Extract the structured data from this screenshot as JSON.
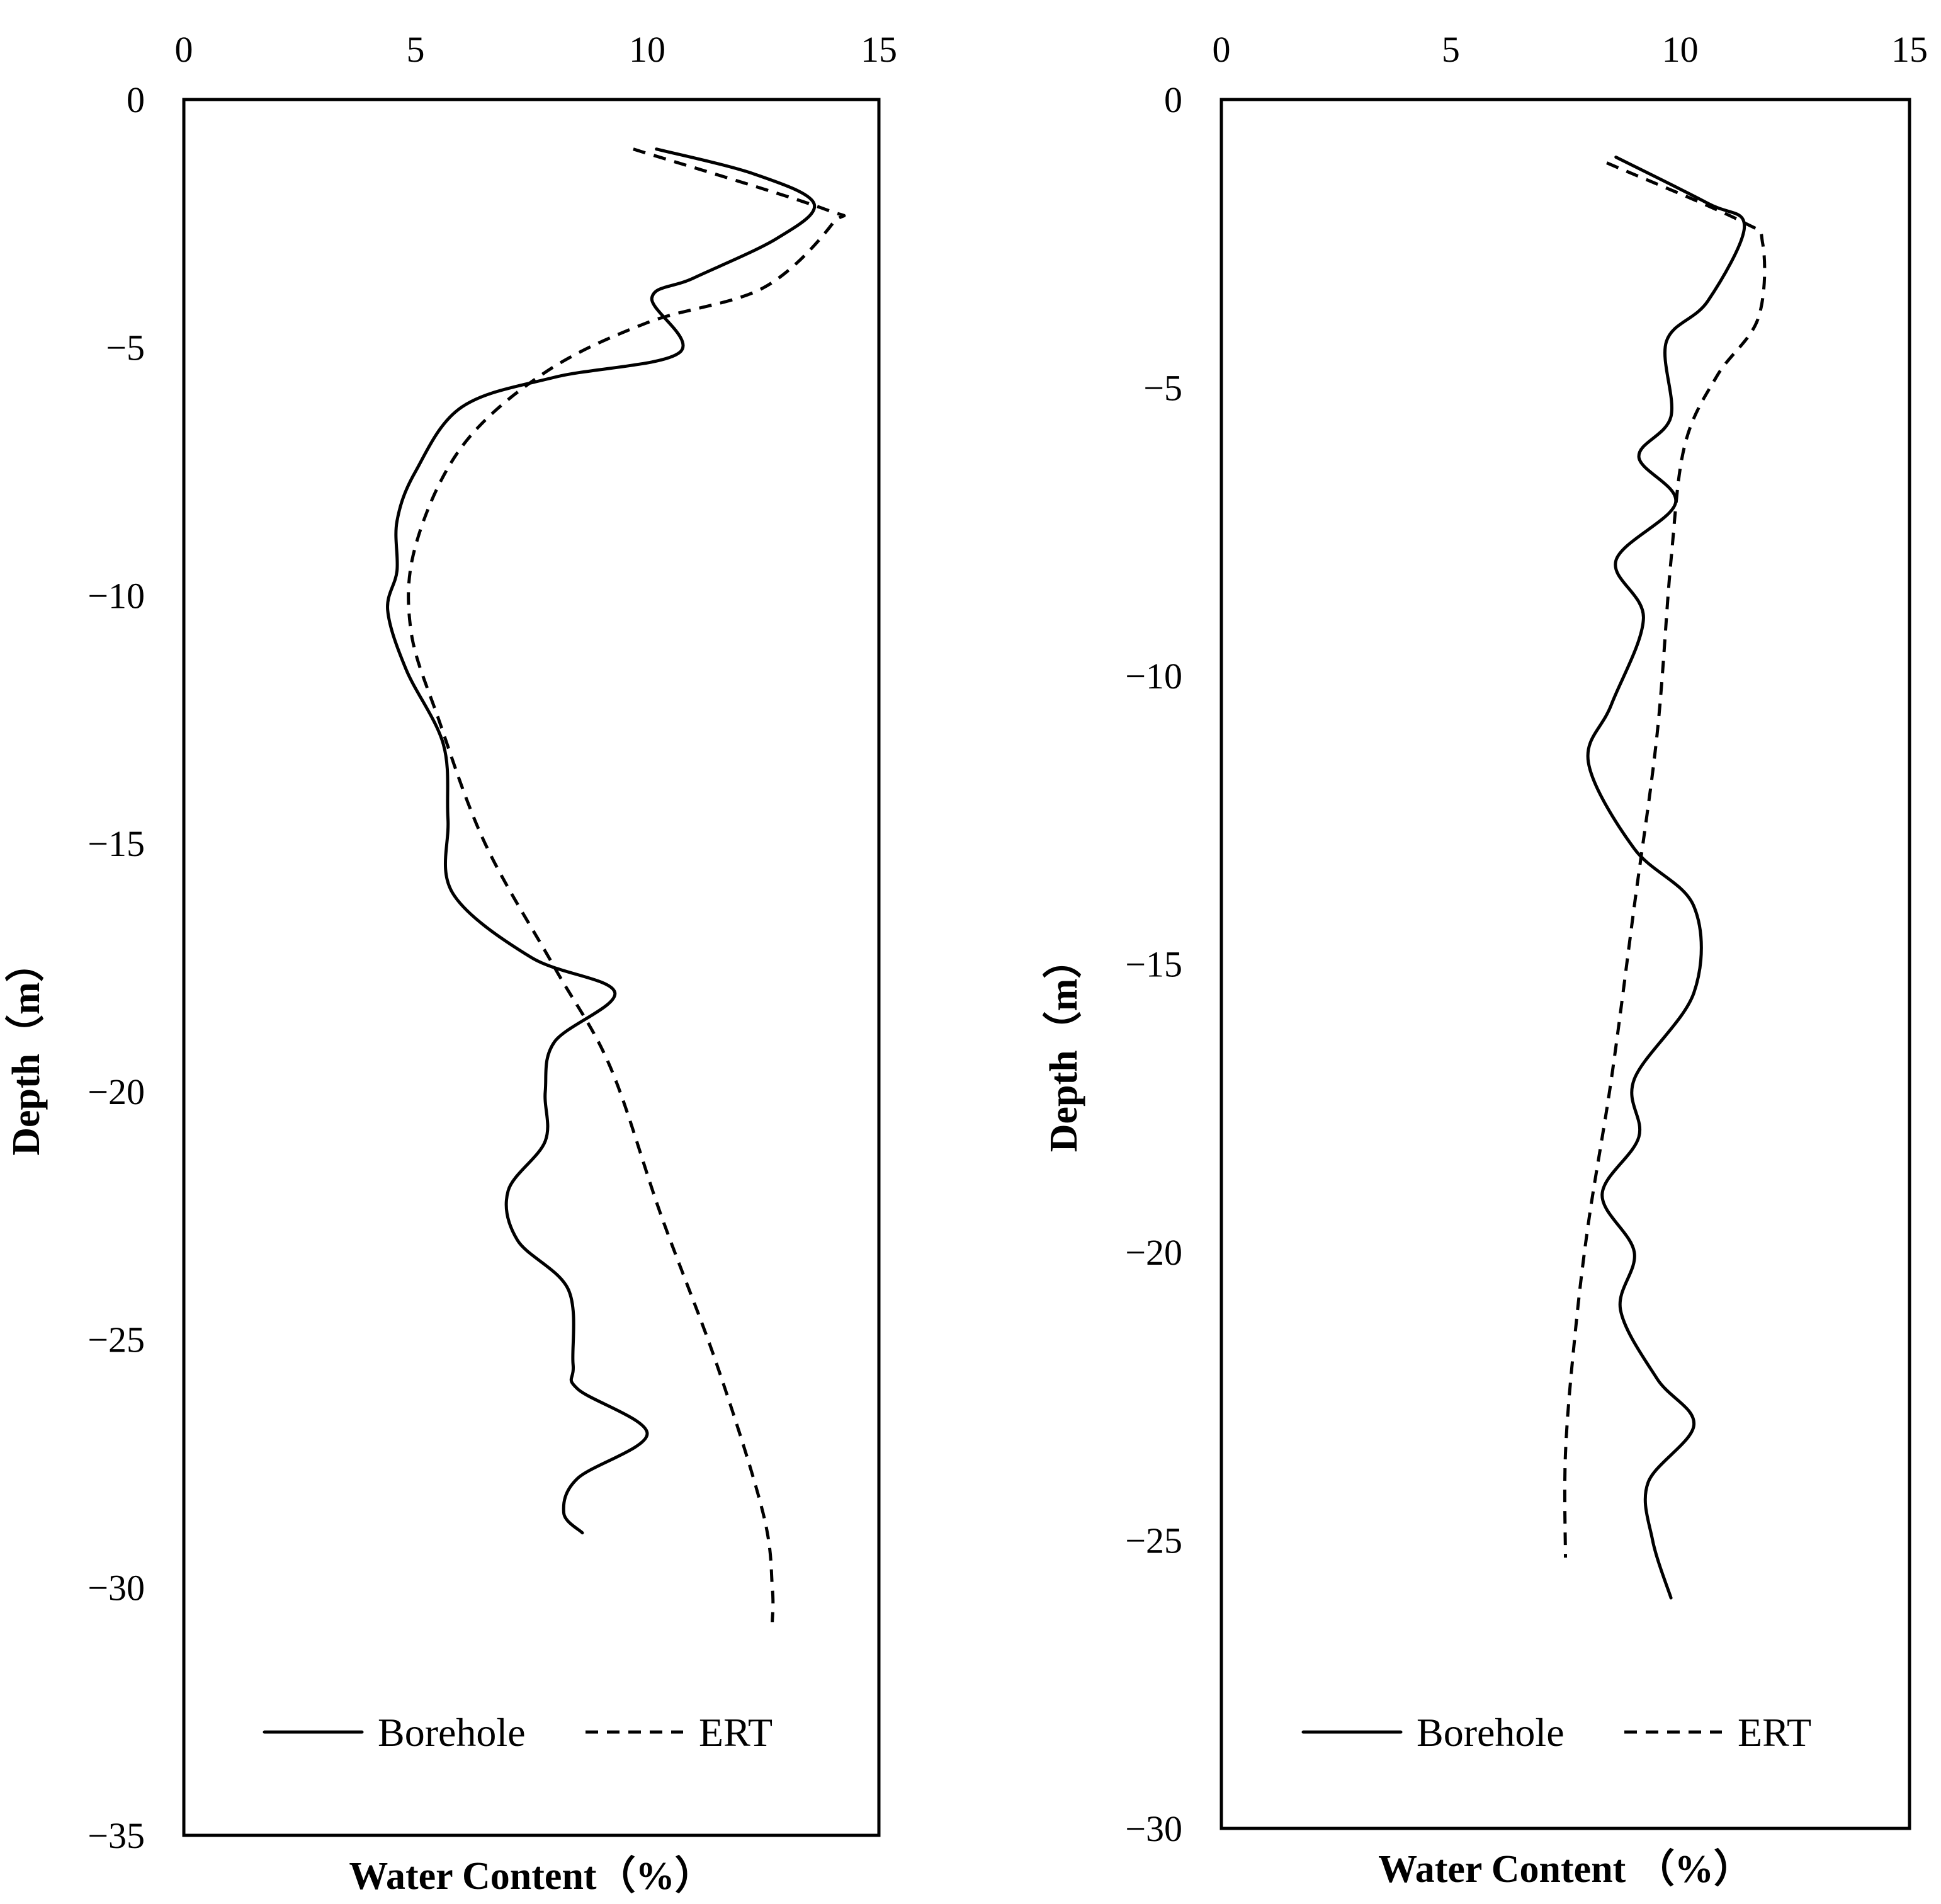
{
  "chart_data": [
    {
      "type": "line",
      "orientation": "vertical-profile",
      "title": "",
      "xlabel": "Water Content（%）",
      "ylabel": "Depth（m）",
      "xlim": [
        0,
        15
      ],
      "ylim": [
        -35,
        0
      ],
      "x_ticks": [
        "0",
        "5",
        "10",
        "15"
      ],
      "y_ticks": [
        "0",
        "−5",
        "−10",
        "−15",
        "−20",
        "−25",
        "−30",
        "−35"
      ],
      "x_axis_position": "top",
      "grid": false,
      "legend": {
        "position": "bottom-center",
        "entries": [
          "Borehole",
          "ERT"
        ]
      },
      "series": [
        {
          "name": "Borehole",
          "style": "solid",
          "points": [
            {
              "x": 10.2,
              "y": -1.0
            },
            {
              "x": 12.3,
              "y": -1.5
            },
            {
              "x": 13.6,
              "y": -2.1
            },
            {
              "x": 12.8,
              "y": -2.8
            },
            {
              "x": 11.0,
              "y": -3.6
            },
            {
              "x": 10.1,
              "y": -4.0
            },
            {
              "x": 10.7,
              "y": -5.1
            },
            {
              "x": 8.0,
              "y": -5.6
            },
            {
              "x": 6.0,
              "y": -6.2
            },
            {
              "x": 5.0,
              "y": -7.5
            },
            {
              "x": 4.6,
              "y": -8.5
            },
            {
              "x": 4.6,
              "y": -9.5
            },
            {
              "x": 4.4,
              "y": -10.3
            },
            {
              "x": 4.8,
              "y": -11.5
            },
            {
              "x": 5.6,
              "y": -13.0
            },
            {
              "x": 5.7,
              "y": -14.5
            },
            {
              "x": 5.8,
              "y": -16.0
            },
            {
              "x": 7.5,
              "y": -17.3
            },
            {
              "x": 9.3,
              "y": -18.0
            },
            {
              "x": 8.0,
              "y": -19.0
            },
            {
              "x": 7.8,
              "y": -20.0
            },
            {
              "x": 7.8,
              "y": -21.0
            },
            {
              "x": 7.0,
              "y": -22.0
            },
            {
              "x": 7.2,
              "y": -23.0
            },
            {
              "x": 8.3,
              "y": -24.0
            },
            {
              "x": 8.4,
              "y": -25.5
            },
            {
              "x": 8.5,
              "y": -26.0
            },
            {
              "x": 10.0,
              "y": -26.9
            },
            {
              "x": 8.5,
              "y": -27.8
            },
            {
              "x": 8.2,
              "y": -28.5
            },
            {
              "x": 8.6,
              "y": -28.9
            }
          ]
        },
        {
          "name": "ERT",
          "style": "dashed",
          "points": [
            {
              "x": 9.7,
              "y": -1.0
            },
            {
              "x": 13.8,
              "y": -2.2
            },
            {
              "x": 14.0,
              "y": -2.5
            },
            {
              "x": 12.5,
              "y": -3.8
            },
            {
              "x": 10.0,
              "y": -4.5
            },
            {
              "x": 7.8,
              "y": -5.5
            },
            {
              "x": 6.0,
              "y": -7.0
            },
            {
              "x": 5.0,
              "y": -9.0
            },
            {
              "x": 4.9,
              "y": -10.7
            },
            {
              "x": 5.5,
              "y": -12.5
            },
            {
              "x": 6.5,
              "y": -15.0
            },
            {
              "x": 8.0,
              "y": -17.5
            },
            {
              "x": 9.2,
              "y": -19.5
            },
            {
              "x": 10.3,
              "y": -22.5
            },
            {
              "x": 11.5,
              "y": -25.5
            },
            {
              "x": 12.5,
              "y": -28.5
            },
            {
              "x": 12.7,
              "y": -30.0
            },
            {
              "x": 12.7,
              "y": -30.7
            }
          ]
        }
      ]
    },
    {
      "type": "line",
      "orientation": "vertical-profile",
      "title": "",
      "xlabel": "Water Content （%）",
      "ylabel": "Depth（m）",
      "xlim": [
        0,
        15
      ],
      "ylim": [
        -30,
        0
      ],
      "x_ticks": [
        "0",
        "5",
        "10",
        "15"
      ],
      "y_ticks": [
        "0",
        "−5",
        "−10",
        "−15",
        "−20",
        "−25",
        "−30"
      ],
      "x_axis_position": "top",
      "grid": false,
      "legend": {
        "position": "bottom-center",
        "entries": [
          "Borehole",
          "ERT"
        ]
      },
      "series": [
        {
          "name": "Borehole",
          "style": "solid",
          "points": [
            {
              "x": 8.6,
              "y": -1.0
            },
            {
              "x": 10.6,
              "y": -1.8
            },
            {
              "x": 11.4,
              "y": -2.2
            },
            {
              "x": 10.6,
              "y": -3.5
            },
            {
              "x": 9.7,
              "y": -4.2
            },
            {
              "x": 9.8,
              "y": -5.5
            },
            {
              "x": 9.1,
              "y": -6.2
            },
            {
              "x": 9.9,
              "y": -7.0
            },
            {
              "x": 8.6,
              "y": -8.0
            },
            {
              "x": 9.2,
              "y": -9.0
            },
            {
              "x": 8.5,
              "y": -10.5
            },
            {
              "x": 8.0,
              "y": -11.5
            },
            {
              "x": 9.0,
              "y": -13.0
            },
            {
              "x": 10.3,
              "y": -14.0
            },
            {
              "x": 10.3,
              "y": -15.5
            },
            {
              "x": 9.0,
              "y": -17.0
            },
            {
              "x": 9.1,
              "y": -18.0
            },
            {
              "x": 8.3,
              "y": -19.0
            },
            {
              "x": 9.0,
              "y": -20.0
            },
            {
              "x": 8.7,
              "y": -21.0
            },
            {
              "x": 9.5,
              "y": -22.2
            },
            {
              "x": 10.3,
              "y": -23.0
            },
            {
              "x": 9.3,
              "y": -24.0
            },
            {
              "x": 9.4,
              "y": -25.0
            },
            {
              "x": 9.8,
              "y": -26.0
            }
          ]
        },
        {
          "name": "ERT",
          "style": "dashed",
          "points": [
            {
              "x": 8.4,
              "y": -1.1
            },
            {
              "x": 11.3,
              "y": -2.1
            },
            {
              "x": 11.8,
              "y": -2.5
            },
            {
              "x": 11.7,
              "y": -3.8
            },
            {
              "x": 10.8,
              "y": -4.8
            },
            {
              "x": 10.1,
              "y": -6.0
            },
            {
              "x": 9.8,
              "y": -8.0
            },
            {
              "x": 9.5,
              "y": -11.0
            },
            {
              "x": 9.0,
              "y": -14.0
            },
            {
              "x": 8.5,
              "y": -17.0
            },
            {
              "x": 8.0,
              "y": -19.5
            },
            {
              "x": 7.7,
              "y": -21.5
            },
            {
              "x": 7.5,
              "y": -23.5
            },
            {
              "x": 7.5,
              "y": -25.3
            }
          ]
        }
      ]
    }
  ]
}
